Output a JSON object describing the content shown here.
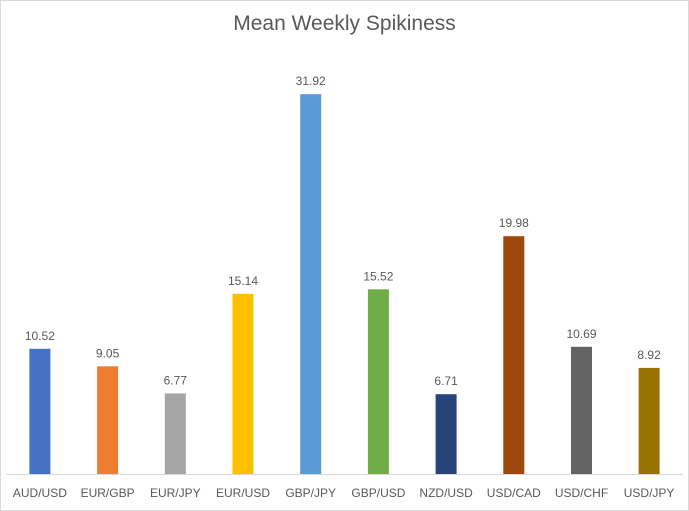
{
  "chart_data": {
    "type": "bar",
    "title": "Mean Weekly Spikiness",
    "xlabel": "",
    "ylabel": "",
    "ylim": [
      0,
      34
    ],
    "grid": false,
    "legend": "none",
    "categories": [
      "AUD/USD",
      "EUR/GBP",
      "EUR/JPY",
      "EUR/USD",
      "GBP/JPY",
      "GBP/USD",
      "NZD/USD",
      "USD/CAD",
      "USD/CHF",
      "USD/JPY"
    ],
    "values": [
      10.52,
      9.05,
      6.77,
      15.14,
      31.92,
      15.52,
      6.71,
      19.98,
      10.69,
      8.92
    ],
    "data_labels": [
      "10.52",
      "9.05",
      "6.77",
      "15.14",
      "31.92",
      "15.52",
      "6.71",
      "19.98",
      "10.69",
      "8.92"
    ],
    "colors": [
      "#4472C4",
      "#ED7D31",
      "#A5A5A5",
      "#FFC000",
      "#5B9BD5",
      "#70AD47",
      "#264478",
      "#9E480E",
      "#636363",
      "#997300"
    ],
    "axis_color": "#D9D9D9"
  }
}
